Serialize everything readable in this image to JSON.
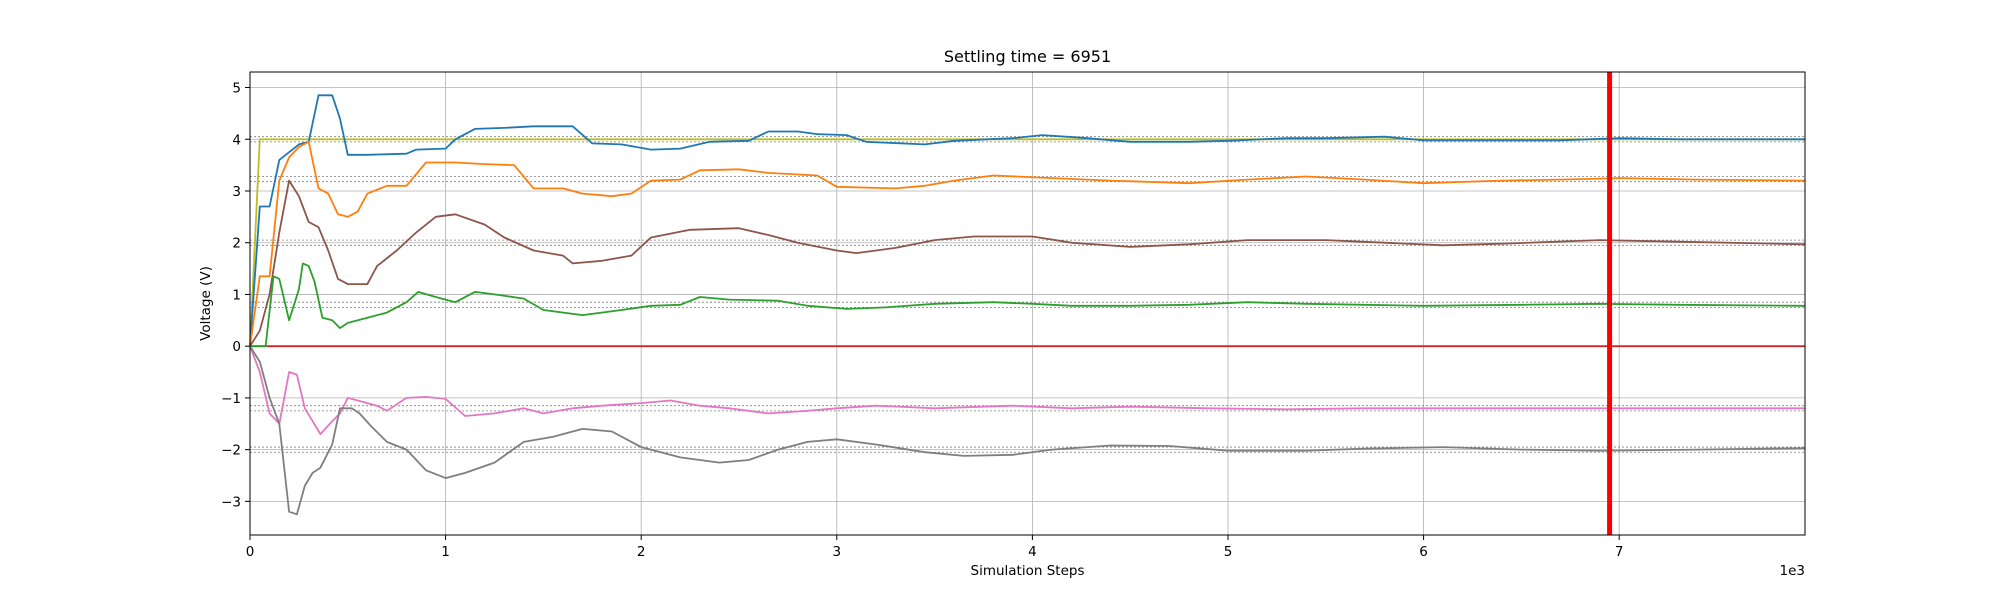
{
  "chart_data": {
    "type": "line",
    "title": "Settling time = 6951",
    "xlabel": "Simulation Steps",
    "ylabel": "Voltage (V)",
    "x_offset_label": "1e3",
    "xlim": [
      0,
      7950
    ],
    "ylim": [
      -3.65,
      5.3
    ],
    "xticks": [
      0,
      1000,
      2000,
      3000,
      4000,
      5000,
      6000,
      7000
    ],
    "xtick_labels": [
      "0",
      "1",
      "2",
      "3",
      "4",
      "5",
      "6",
      "7"
    ],
    "yticks": [
      -3,
      -2,
      -1,
      0,
      1,
      2,
      3,
      4,
      5
    ],
    "ytick_labels": [
      "−3",
      "−2",
      "−1",
      "0",
      "1",
      "2",
      "3",
      "4",
      "5"
    ],
    "grid": true,
    "settling_marker": {
      "x": 6951,
      "color": "#ff0000"
    },
    "series": [
      {
        "color": "#bcbd22",
        "points": [
          [
            0,
            0
          ],
          [
            50,
            4.0
          ],
          [
            7950,
            4.0
          ]
        ]
      },
      {
        "color": "#d62728",
        "points": [
          [
            0,
            0
          ],
          [
            7950,
            0
          ]
        ]
      },
      {
        "color": "#1f77b4",
        "points": [
          [
            0,
            0
          ],
          [
            50,
            2.7
          ],
          [
            100,
            2.7
          ],
          [
            150,
            3.6
          ],
          [
            200,
            3.75
          ],
          [
            250,
            3.9
          ],
          [
            300,
            3.95
          ],
          [
            350,
            4.85
          ],
          [
            420,
            4.85
          ],
          [
            460,
            4.4
          ],
          [
            500,
            3.7
          ],
          [
            600,
            3.7
          ],
          [
            800,
            3.72
          ],
          [
            850,
            3.8
          ],
          [
            1000,
            3.82
          ],
          [
            1050,
            4.0
          ],
          [
            1150,
            4.2
          ],
          [
            1300,
            4.22
          ],
          [
            1450,
            4.25
          ],
          [
            1650,
            4.25
          ],
          [
            1750,
            3.92
          ],
          [
            1900,
            3.9
          ],
          [
            2050,
            3.8
          ],
          [
            2200,
            3.82
          ],
          [
            2350,
            3.95
          ],
          [
            2550,
            3.97
          ],
          [
            2650,
            4.15
          ],
          [
            2800,
            4.15
          ],
          [
            2900,
            4.1
          ],
          [
            3050,
            4.08
          ],
          [
            3150,
            3.95
          ],
          [
            3450,
            3.9
          ],
          [
            3600,
            3.97
          ],
          [
            3900,
            4.02
          ],
          [
            4050,
            4.08
          ],
          [
            4250,
            4.03
          ],
          [
            4500,
            3.95
          ],
          [
            4800,
            3.95
          ],
          [
            5000,
            3.97
          ],
          [
            5300,
            4.02
          ],
          [
            5500,
            4.02
          ],
          [
            5800,
            4.05
          ],
          [
            6000,
            3.98
          ],
          [
            6300,
            3.98
          ],
          [
            6700,
            3.98
          ],
          [
            7000,
            4.02
          ],
          [
            7300,
            4.0
          ],
          [
            7950,
            4.0
          ]
        ]
      },
      {
        "color": "#ff7f0e",
        "points": [
          [
            0,
            0
          ],
          [
            50,
            1.35
          ],
          [
            100,
            1.35
          ],
          [
            150,
            3.2
          ],
          [
            200,
            3.65
          ],
          [
            250,
            3.85
          ],
          [
            300,
            3.95
          ],
          [
            350,
            3.05
          ],
          [
            400,
            2.95
          ],
          [
            450,
            2.55
          ],
          [
            500,
            2.5
          ],
          [
            550,
            2.6
          ],
          [
            600,
            2.95
          ],
          [
            700,
            3.1
          ],
          [
            800,
            3.1
          ],
          [
            900,
            3.55
          ],
          [
            1050,
            3.55
          ],
          [
            1200,
            3.52
          ],
          [
            1350,
            3.5
          ],
          [
            1450,
            3.05
          ],
          [
            1600,
            3.05
          ],
          [
            1700,
            2.95
          ],
          [
            1850,
            2.9
          ],
          [
            1950,
            2.95
          ],
          [
            2050,
            3.2
          ],
          [
            2200,
            3.22
          ],
          [
            2300,
            3.4
          ],
          [
            2500,
            3.42
          ],
          [
            2650,
            3.35
          ],
          [
            2900,
            3.3
          ],
          [
            3000,
            3.08
          ],
          [
            3300,
            3.05
          ],
          [
            3450,
            3.1
          ],
          [
            3600,
            3.2
          ],
          [
            3800,
            3.3
          ],
          [
            4100,
            3.25
          ],
          [
            4400,
            3.2
          ],
          [
            4800,
            3.15
          ],
          [
            5100,
            3.22
          ],
          [
            5400,
            3.28
          ],
          [
            5700,
            3.22
          ],
          [
            6000,
            3.15
          ],
          [
            6400,
            3.2
          ],
          [
            6700,
            3.22
          ],
          [
            7000,
            3.25
          ],
          [
            7400,
            3.22
          ],
          [
            7950,
            3.2
          ]
        ]
      },
      {
        "color": "#8c564b",
        "points": [
          [
            0,
            0
          ],
          [
            50,
            0.3
          ],
          [
            100,
            1.0
          ],
          [
            150,
            2.2
          ],
          [
            200,
            3.2
          ],
          [
            250,
            2.9
          ],
          [
            300,
            2.4
          ],
          [
            350,
            2.3
          ],
          [
            400,
            1.85
          ],
          [
            450,
            1.3
          ],
          [
            500,
            1.2
          ],
          [
            600,
            1.2
          ],
          [
            650,
            1.55
          ],
          [
            750,
            1.85
          ],
          [
            850,
            2.2
          ],
          [
            950,
            2.5
          ],
          [
            1050,
            2.55
          ],
          [
            1200,
            2.35
          ],
          [
            1300,
            2.1
          ],
          [
            1450,
            1.85
          ],
          [
            1600,
            1.75
          ],
          [
            1650,
            1.6
          ],
          [
            1800,
            1.65
          ],
          [
            1950,
            1.75
          ],
          [
            2050,
            2.1
          ],
          [
            2250,
            2.25
          ],
          [
            2500,
            2.28
          ],
          [
            2650,
            2.15
          ],
          [
            2800,
            2.0
          ],
          [
            3000,
            1.85
          ],
          [
            3100,
            1.8
          ],
          [
            3300,
            1.9
          ],
          [
            3500,
            2.05
          ],
          [
            3700,
            2.12
          ],
          [
            4000,
            2.12
          ],
          [
            4200,
            2.0
          ],
          [
            4500,
            1.92
          ],
          [
            4800,
            1.97
          ],
          [
            5100,
            2.05
          ],
          [
            5500,
            2.05
          ],
          [
            5800,
            2.0
          ],
          [
            6100,
            1.95
          ],
          [
            6400,
            1.98
          ],
          [
            6900,
            2.05
          ],
          [
            7300,
            2.02
          ],
          [
            7950,
            1.97
          ]
        ]
      },
      {
        "color": "#2ca02c",
        "points": [
          [
            0,
            0
          ],
          [
            80,
            0
          ],
          [
            120,
            1.35
          ],
          [
            150,
            1.3
          ],
          [
            200,
            0.5
          ],
          [
            250,
            1.1
          ],
          [
            270,
            1.6
          ],
          [
            300,
            1.55
          ],
          [
            330,
            1.25
          ],
          [
            370,
            0.55
          ],
          [
            420,
            0.5
          ],
          [
            460,
            0.35
          ],
          [
            500,
            0.45
          ],
          [
            600,
            0.55
          ],
          [
            700,
            0.65
          ],
          [
            800,
            0.85
          ],
          [
            860,
            1.05
          ],
          [
            950,
            0.95
          ],
          [
            1050,
            0.85
          ],
          [
            1150,
            1.05
          ],
          [
            1250,
            1.0
          ],
          [
            1400,
            0.92
          ],
          [
            1500,
            0.7
          ],
          [
            1700,
            0.6
          ],
          [
            1900,
            0.7
          ],
          [
            2050,
            0.78
          ],
          [
            2200,
            0.8
          ],
          [
            2300,
            0.95
          ],
          [
            2450,
            0.9
          ],
          [
            2700,
            0.88
          ],
          [
            2850,
            0.78
          ],
          [
            3050,
            0.72
          ],
          [
            3250,
            0.75
          ],
          [
            3500,
            0.82
          ],
          [
            3800,
            0.85
          ],
          [
            4000,
            0.82
          ],
          [
            4200,
            0.78
          ],
          [
            4500,
            0.78
          ],
          [
            4800,
            0.8
          ],
          [
            5100,
            0.85
          ],
          [
            5400,
            0.82
          ],
          [
            5700,
            0.8
          ],
          [
            6000,
            0.78
          ],
          [
            6500,
            0.8
          ],
          [
            6900,
            0.82
          ],
          [
            7300,
            0.8
          ],
          [
            7950,
            0.78
          ]
        ]
      },
      {
        "color": "#e377c2",
        "points": [
          [
            0,
            0
          ],
          [
            50,
            -0.5
          ],
          [
            100,
            -1.3
          ],
          [
            150,
            -1.5
          ],
          [
            200,
            -0.5
          ],
          [
            240,
            -0.55
          ],
          [
            280,
            -1.2
          ],
          [
            320,
            -1.45
          ],
          [
            360,
            -1.7
          ],
          [
            420,
            -1.45
          ],
          [
            460,
            -1.3
          ],
          [
            500,
            -1.0
          ],
          [
            550,
            -1.05
          ],
          [
            650,
            -1.15
          ],
          [
            700,
            -1.25
          ],
          [
            800,
            -1.0
          ],
          [
            900,
            -0.98
          ],
          [
            1000,
            -1.02
          ],
          [
            1100,
            -1.35
          ],
          [
            1250,
            -1.3
          ],
          [
            1400,
            -1.2
          ],
          [
            1500,
            -1.3
          ],
          [
            1650,
            -1.2
          ],
          [
            1800,
            -1.15
          ],
          [
            2000,
            -1.1
          ],
          [
            2150,
            -1.05
          ],
          [
            2300,
            -1.15
          ],
          [
            2450,
            -1.2
          ],
          [
            2650,
            -1.3
          ],
          [
            2850,
            -1.25
          ],
          [
            3000,
            -1.2
          ],
          [
            3200,
            -1.15
          ],
          [
            3500,
            -1.2
          ],
          [
            3900,
            -1.15
          ],
          [
            4200,
            -1.2
          ],
          [
            4500,
            -1.17
          ],
          [
            4900,
            -1.2
          ],
          [
            5300,
            -1.22
          ],
          [
            5700,
            -1.2
          ],
          [
            6100,
            -1.2
          ],
          [
            6500,
            -1.2
          ],
          [
            7000,
            -1.2
          ],
          [
            7950,
            -1.2
          ]
        ]
      },
      {
        "color": "#7f7f7f",
        "points": [
          [
            0,
            0
          ],
          [
            50,
            -0.3
          ],
          [
            100,
            -1.0
          ],
          [
            150,
            -1.5
          ],
          [
            200,
            -3.2
          ],
          [
            240,
            -3.25
          ],
          [
            280,
            -2.7
          ],
          [
            320,
            -2.45
          ],
          [
            360,
            -2.35
          ],
          [
            420,
            -1.9
          ],
          [
            460,
            -1.2
          ],
          [
            520,
            -1.2
          ],
          [
            560,
            -1.3
          ],
          [
            620,
            -1.55
          ],
          [
            700,
            -1.85
          ],
          [
            800,
            -2.0
          ],
          [
            900,
            -2.4
          ],
          [
            1000,
            -2.55
          ],
          [
            1100,
            -2.45
          ],
          [
            1250,
            -2.25
          ],
          [
            1400,
            -1.85
          ],
          [
            1550,
            -1.75
          ],
          [
            1700,
            -1.6
          ],
          [
            1850,
            -1.65
          ],
          [
            2000,
            -1.95
          ],
          [
            2200,
            -2.15
          ],
          [
            2400,
            -2.25
          ],
          [
            2550,
            -2.2
          ],
          [
            2700,
            -2.0
          ],
          [
            2850,
            -1.85
          ],
          [
            3000,
            -1.8
          ],
          [
            3200,
            -1.9
          ],
          [
            3450,
            -2.05
          ],
          [
            3650,
            -2.12
          ],
          [
            3900,
            -2.1
          ],
          [
            4100,
            -2.0
          ],
          [
            4400,
            -1.92
          ],
          [
            4700,
            -1.93
          ],
          [
            5000,
            -2.02
          ],
          [
            5400,
            -2.02
          ],
          [
            5700,
            -1.98
          ],
          [
            6100,
            -1.95
          ],
          [
            6500,
            -2.0
          ],
          [
            6900,
            -2.02
          ],
          [
            7400,
            -2.0
          ],
          [
            7950,
            -1.97
          ]
        ]
      }
    ],
    "reference_lines": [
      {
        "y": 4.05
      },
      {
        "y": 3.95
      },
      {
        "y": 3.28
      },
      {
        "y": 3.18
      },
      {
        "y": 2.05
      },
      {
        "y": 1.95
      },
      {
        "y": 0.85
      },
      {
        "y": 0.75
      },
      {
        "y": -1.15
      },
      {
        "y": -1.25
      },
      {
        "y": -1.95
      },
      {
        "y": -2.05
      }
    ]
  }
}
